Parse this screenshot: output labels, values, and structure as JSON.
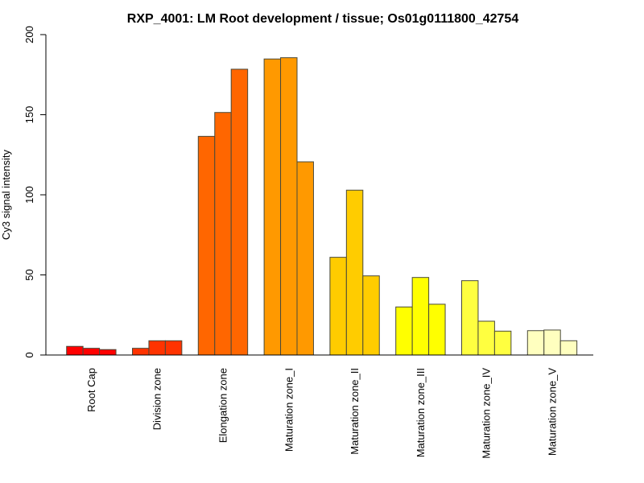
{
  "chart_data": {
    "type": "bar",
    "title": "RXP_4001: LM Root development / tissue; Os01g0111800_42754",
    "xlabel": "",
    "ylabel": "Cy3 signal intensity",
    "ylim": [
      0,
      200
    ],
    "yticks": [
      0,
      50,
      100,
      150,
      200
    ],
    "ytick_labels": [
      "0",
      "50",
      "100",
      "150",
      "200"
    ],
    "grid": false,
    "legend": "none",
    "categories": [
      "Root Cap",
      "Division zone",
      "Elongation zone",
      "Maturation zone_I",
      "Maturation zone_II",
      "Maturation zone_III",
      "Maturation zone_IV",
      "Maturation zone_V"
    ],
    "colors": [
      "#FF0000",
      "#FF3300",
      "#FF6600",
      "#FF9900",
      "#FFCC00",
      "#FFFF00",
      "#FFFF40",
      "#FFFFBF"
    ],
    "bar_border_color": "#4a4a3a",
    "replicates_per_category": 3,
    "values": [
      [
        5.4,
        4.2,
        3.4
      ],
      [
        4.2,
        8.9,
        8.9
      ],
      [
        136.5,
        151.4,
        178.4
      ],
      [
        184.8,
        185.6,
        120.6
      ],
      [
        61.0,
        102.9,
        49.4
      ],
      [
        30.0,
        48.4,
        31.7
      ],
      [
        46.4,
        21.1,
        14.9
      ],
      [
        15.2,
        15.6,
        8.9
      ]
    ]
  }
}
